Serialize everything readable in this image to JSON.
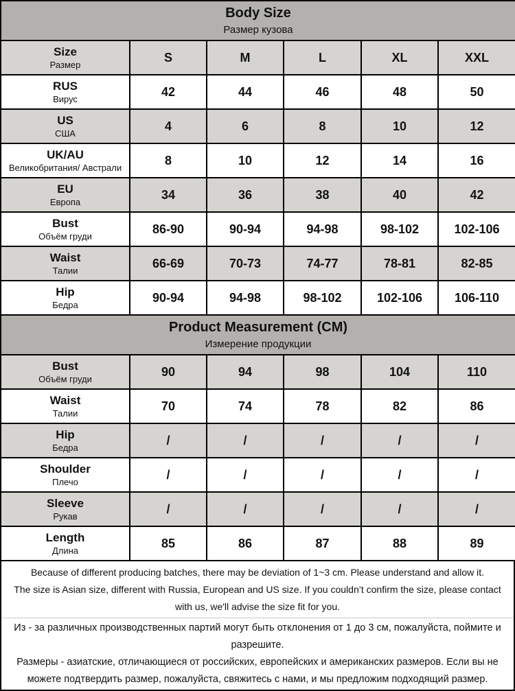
{
  "body_size_section": {
    "title": "Body Size",
    "subtitle": "Размер кузова"
  },
  "product_measurement_section": {
    "title": "Product Measurement (CM)",
    "subtitle": "Измерение продукции"
  },
  "body_size_rows": [
    {
      "label": "Size",
      "sublabel": "Размер",
      "values": [
        "S",
        "M",
        "L",
        "XL",
        "XXL"
      ]
    },
    {
      "label": "RUS",
      "sublabel": "Вирус",
      "values": [
        "42",
        "44",
        "46",
        "48",
        "50"
      ]
    },
    {
      "label": "US",
      "sublabel": "США",
      "values": [
        "4",
        "6",
        "8",
        "10",
        "12"
      ]
    },
    {
      "label": "UK/AU",
      "sublabel": "Великобритания/ Австрали",
      "values": [
        "8",
        "10",
        "12",
        "14",
        "16"
      ]
    },
    {
      "label": "EU",
      "sublabel": "Европа",
      "values": [
        "34",
        "36",
        "38",
        "40",
        "42"
      ]
    },
    {
      "label": "Bust",
      "sublabel": "Объём груди",
      "values": [
        "86-90",
        "90-94",
        "94-98",
        "98-102",
        "102-106"
      ]
    },
    {
      "label": "Waist",
      "sublabel": "Талии",
      "values": [
        "66-69",
        "70-73",
        "74-77",
        "78-81",
        "82-85"
      ]
    },
    {
      "label": "Hip",
      "sublabel": "Бедра",
      "values": [
        "90-94",
        "94-98",
        "98-102",
        "102-106",
        "106-110"
      ]
    }
  ],
  "product_measurement_rows": [
    {
      "label": "Bust",
      "sublabel": "Объём груди",
      "values": [
        "90",
        "94",
        "98",
        "104",
        "110"
      ]
    },
    {
      "label": "Waist",
      "sublabel": "Талии",
      "values": [
        "70",
        "74",
        "78",
        "82",
        "86"
      ]
    },
    {
      "label": "Hip",
      "sublabel": "Бедра",
      "values": [
        "/",
        "/",
        "/",
        "/",
        "/"
      ]
    },
    {
      "label": "Shoulder",
      "sublabel": "Плечо",
      "values": [
        "/",
        "/",
        "/",
        "/",
        "/"
      ]
    },
    {
      "label": "Sleeve",
      "sublabel": "Рукав",
      "values": [
        "/",
        "/",
        "/",
        "/",
        "/"
      ]
    },
    {
      "label": "Length",
      "sublabel": "Длина",
      "values": [
        "85",
        "86",
        "87",
        "88",
        "89"
      ]
    }
  ],
  "notes": {
    "en1": "Because of different producing batches, there may be deviation of 1~3 cm. Please understand and allow it.",
    "en2": "The size is Asian size, different with Russia, European and US size. If you couldn’t confirm the size, please contact with us, we'll advise the size fit for you.",
    "ru1": "Из - за различных производственных партий могут быть отклонения от 1 до 3 см, пожалуйста, поймите и разрешите.",
    "ru2": "Размеры - азиатские, отличающиеся от российских, европейских и американских размеров. Если вы не можете подтвердить размер, пожалуйста, свяжитесь с нами, и мы предложим подходящий размер."
  },
  "colors": {
    "header_bg": "#b3b1ae",
    "row_alt_bg": "#d6d4d1",
    "row_bg": "#ffffff",
    "border": "#000000"
  }
}
